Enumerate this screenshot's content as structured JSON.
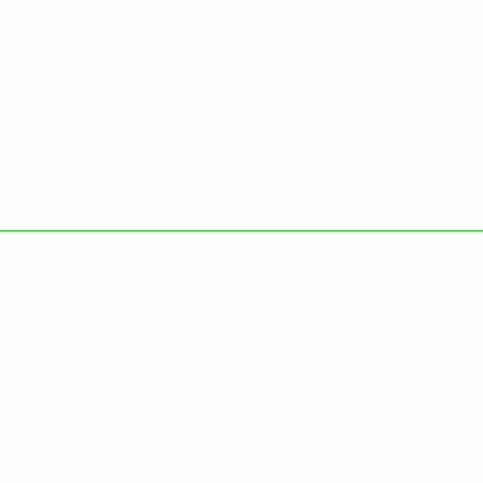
{
  "line": {
    "color": "#00ff00"
  }
}
